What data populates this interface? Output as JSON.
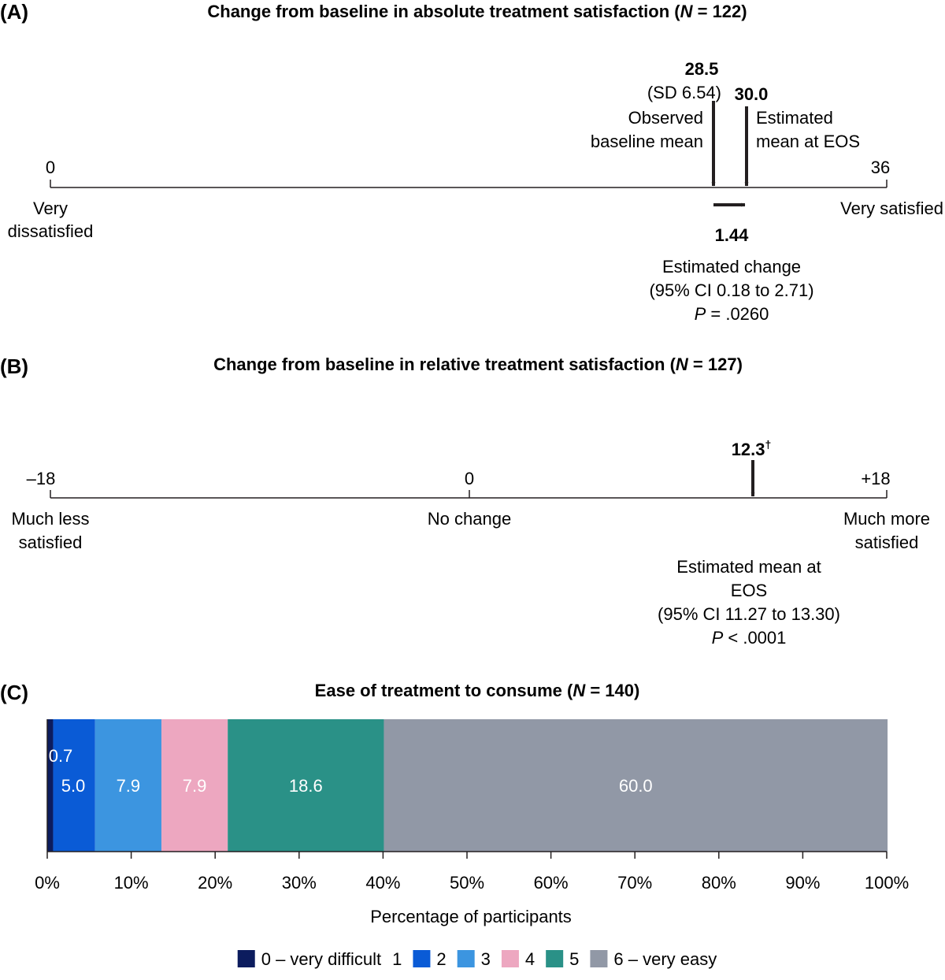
{
  "panels": {
    "a": {
      "label": "(A)",
      "title_pre": "Change from baseline in absolute treatment satisfaction (",
      "title_n": "N",
      "title_post": " = 122)",
      "scale_min": "0",
      "scale_max": "36",
      "left_anchor": [
        "Very",
        "dissatisfied"
      ],
      "right_anchor": "Very satisfied",
      "baseline": {
        "value": "28.5",
        "sd": "(SD 6.54)",
        "label": [
          "Observed",
          "baseline mean"
        ]
      },
      "eos": {
        "value": "30.0",
        "label": [
          "Estimated",
          "mean at EOS"
        ]
      },
      "change": {
        "value": "1.44",
        "label": "Estimated change",
        "ci": "(95% CI 0.18 to 2.71)",
        "p_letter": "P",
        "p_rest": " = .0260"
      }
    },
    "b": {
      "label": "(B)",
      "title_pre": "Change from baseline in relative treatment satisfaction (",
      "title_n": "N",
      "title_post": " = 127)",
      "scale_min": "–18",
      "scale_mid": "0",
      "scale_max": "+18",
      "left_anchor": [
        "Much less",
        "satisfied"
      ],
      "mid_anchor": "No change",
      "right_anchor": [
        "Much more",
        "satisfied"
      ],
      "estimate": {
        "value": "12.3",
        "mark": "†",
        "label": [
          "Estimated mean at",
          "EOS"
        ],
        "ci": "(95% CI 11.27 to 13.30)",
        "p_letter": "P",
        "p_rest": " < .0001"
      }
    },
    "c": {
      "label": "(C)",
      "title_pre": "Ease of treatment to consume (",
      "title_n": "N",
      "title_post": " = 140)",
      "xlabel": "Percentage of participants",
      "ticks": [
        "0%",
        "10%",
        "20%",
        "30%",
        "40%",
        "50%",
        "60%",
        "70%",
        "80%",
        "90%",
        "100%"
      ],
      "legend": [
        "0 – very difficult",
        "1",
        "2",
        "3",
        "4",
        "5",
        "6 – very easy"
      ]
    }
  },
  "chart_data": [
    {
      "type": "scale",
      "title": "Change from baseline in absolute treatment satisfaction (N = 122)",
      "range": [
        0,
        36
      ],
      "baseline_mean": 28.5,
      "baseline_sd": 6.54,
      "estimated_mean_eos": 30.0,
      "estimated_change": 1.44,
      "ci95": [
        0.18,
        2.71
      ],
      "p_value": ".0260"
    },
    {
      "type": "scale",
      "title": "Change from baseline in relative treatment satisfaction (N = 127)",
      "range": [
        -18,
        18
      ],
      "estimated_mean_eos": 12.3,
      "ci95": [
        11.27,
        13.3
      ],
      "p_value": "< .0001"
    },
    {
      "type": "bar",
      "stacked": true,
      "orientation": "horizontal",
      "title": "Ease of treatment to consume (N = 140)",
      "xlabel": "Percentage of participants",
      "xlim": [
        0,
        100
      ],
      "series": [
        {
          "name": "0 – very difficult",
          "value": 0.7,
          "label": "0.7",
          "color": "#0c1c5e"
        },
        {
          "name": "1",
          "value": 0,
          "label": "",
          "color": "#ffffff"
        },
        {
          "name": "2",
          "value": 5.0,
          "label": "5.0",
          "color": "#0a5bd6"
        },
        {
          "name": "3",
          "value": 7.9,
          "label": "7.9",
          "color": "#3c95e0"
        },
        {
          "name": "4",
          "value": 7.9,
          "label": "7.9",
          "color": "#eda7c0"
        },
        {
          "name": "5",
          "value": 18.6,
          "label": "18.6",
          "color": "#2a9187"
        },
        {
          "name": "6 – very easy",
          "value": 60.0,
          "label": "60.0",
          "color": "#9198a6"
        }
      ]
    }
  ]
}
